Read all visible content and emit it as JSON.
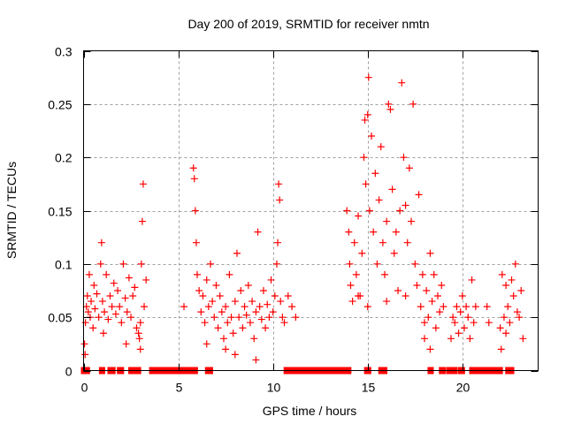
{
  "chart_data": {
    "type": "scatter",
    "title": "Day 200 of 2019, SRMTID for receiver nmtn",
    "xlabel": "GPS time / hours",
    "ylabel": "SRMTID / TECUs",
    "xlim": [
      0,
      24
    ],
    "ylim": [
      0,
      0.3
    ],
    "xticks": [
      0,
      5,
      10,
      15,
      20
    ],
    "xtick_labels": [
      "0",
      "5",
      "10",
      "15",
      "20"
    ],
    "yticks": [
      0,
      0.05,
      0.1,
      0.15,
      0.2,
      0.25,
      0.3
    ],
    "ytick_labels": [
      "0",
      "0.05",
      "0.1",
      "0.15",
      "0.2",
      "0.25",
      "0.3"
    ],
    "grid": true,
    "marker": "+",
    "color": "#ff0000",
    "legend": "none",
    "series": [
      {
        "name": "SRMTID",
        "points": [
          [
            0.05,
            0.025
          ],
          [
            0.1,
            0.045
          ],
          [
            0.15,
            0.06
          ],
          [
            0.2,
            0.07
          ],
          [
            0.25,
            0.055
          ],
          [
            0.3,
            0.09
          ],
          [
            0.35,
            0.05
          ],
          [
            0.4,
            0.065
          ],
          [
            0.5,
            0.04
          ],
          [
            0.55,
            0.08
          ],
          [
            0.6,
            0.058
          ],
          [
            0.7,
            0.072
          ],
          [
            0.8,
            0.05
          ],
          [
            0.9,
            0.1
          ],
          [
            0.95,
            0.12
          ],
          [
            1.0,
            0.065
          ],
          [
            1.1,
            0.055
          ],
          [
            1.2,
            0.09
          ],
          [
            1.3,
            0.048
          ],
          [
            1.4,
            0.07
          ],
          [
            1.5,
            0.06
          ],
          [
            1.6,
            0.082
          ],
          [
            1.7,
            0.053
          ],
          [
            1.8,
            0.075
          ],
          [
            1.9,
            0.06
          ],
          [
            2.0,
            0.045
          ],
          [
            2.1,
            0.1
          ],
          [
            2.2,
            0.068
          ],
          [
            2.3,
            0.055
          ],
          [
            2.4,
            0.087
          ],
          [
            2.5,
            0.05
          ],
          [
            2.6,
            0.07
          ],
          [
            2.7,
            0.078
          ],
          [
            2.8,
            0.04
          ],
          [
            2.9,
            0.035
          ],
          [
            3.0,
            0.045
          ],
          [
            3.05,
            0.1
          ],
          [
            3.1,
            0.14
          ],
          [
            3.15,
            0.175
          ],
          [
            3.2,
            0.06
          ],
          [
            3.3,
            0.085
          ],
          [
            3.0,
            0.02
          ],
          [
            2.95,
            0.03
          ],
          [
            0.08,
            0.015
          ],
          [
            1.05,
            0.035
          ],
          [
            2.25,
            0.025
          ],
          [
            5.3,
            0.06
          ],
          [
            5.8,
            0.19
          ],
          [
            5.85,
            0.18
          ],
          [
            5.9,
            0.15
          ],
          [
            5.95,
            0.12
          ],
          [
            6.0,
            0.09
          ],
          [
            6.1,
            0.075
          ],
          [
            6.2,
            0.055
          ],
          [
            6.3,
            0.07
          ],
          [
            6.4,
            0.045
          ],
          [
            6.5,
            0.085
          ],
          [
            6.6,
            0.06
          ],
          [
            6.7,
            0.1
          ],
          [
            6.8,
            0.065
          ],
          [
            6.9,
            0.05
          ],
          [
            7.0,
            0.08
          ],
          [
            7.1,
            0.04
          ],
          [
            7.2,
            0.07
          ],
          [
            7.3,
            0.055
          ],
          [
            7.4,
            0.03
          ],
          [
            7.5,
            0.06
          ],
          [
            7.6,
            0.045
          ],
          [
            7.7,
            0.09
          ],
          [
            7.8,
            0.05
          ],
          [
            7.9,
            0.035
          ],
          [
            8.0,
            0.065
          ],
          [
            8.1,
            0.11
          ],
          [
            8.2,
            0.05
          ],
          [
            8.3,
            0.075
          ],
          [
            8.4,
            0.04
          ],
          [
            8.5,
            0.06
          ],
          [
            8.6,
            0.052
          ],
          [
            8.7,
            0.08
          ],
          [
            8.8,
            0.045
          ],
          [
            8.9,
            0.065
          ],
          [
            9.0,
            0.03
          ],
          [
            9.1,
            0.055
          ],
          [
            9.2,
            0.13
          ],
          [
            9.3,
            0.06
          ],
          [
            9.4,
            0.048
          ],
          [
            9.5,
            0.075
          ],
          [
            9.6,
            0.04
          ],
          [
            9.7,
            0.062
          ],
          [
            9.8,
            0.05
          ],
          [
            9.9,
            0.085
          ],
          [
            10.0,
            0.055
          ],
          [
            10.1,
            0.07
          ],
          [
            10.2,
            0.1
          ],
          [
            10.25,
            0.12
          ],
          [
            10.3,
            0.175
          ],
          [
            10.35,
            0.16
          ],
          [
            10.4,
            0.065
          ],
          [
            10.5,
            0.05
          ],
          [
            10.6,
            0.045
          ],
          [
            10.8,
            0.07
          ],
          [
            11.0,
            0.06
          ],
          [
            11.2,
            0.05
          ],
          [
            9.1,
            0.01
          ],
          [
            8.0,
            0.015
          ],
          [
            7.5,
            0.02
          ],
          [
            6.5,
            0.025
          ],
          [
            13.9,
            0.15
          ],
          [
            14.0,
            0.13
          ],
          [
            14.05,
            0.1
          ],
          [
            14.1,
            0.08
          ],
          [
            14.2,
            0.065
          ],
          [
            14.3,
            0.12
          ],
          [
            14.4,
            0.09
          ],
          [
            14.5,
            0.145
          ],
          [
            14.6,
            0.07
          ],
          [
            14.7,
            0.11
          ],
          [
            14.8,
            0.2
          ],
          [
            14.85,
            0.235
          ],
          [
            14.9,
            0.175
          ],
          [
            15.0,
            0.24
          ],
          [
            15.05,
            0.275
          ],
          [
            15.1,
            0.15
          ],
          [
            15.2,
            0.22
          ],
          [
            15.3,
            0.13
          ],
          [
            15.4,
            0.185
          ],
          [
            15.5,
            0.1
          ],
          [
            15.6,
            0.16
          ],
          [
            15.7,
            0.21
          ],
          [
            15.8,
            0.12
          ],
          [
            15.9,
            0.09
          ],
          [
            16.0,
            0.14
          ],
          [
            16.1,
            0.25
          ],
          [
            16.2,
            0.245
          ],
          [
            16.3,
            0.17
          ],
          [
            16.4,
            0.11
          ],
          [
            16.5,
            0.13
          ],
          [
            16.6,
            0.075
          ],
          [
            16.7,
            0.15
          ],
          [
            16.8,
            0.27
          ],
          [
            16.9,
            0.2
          ],
          [
            17.0,
            0.155
          ],
          [
            17.1,
            0.12
          ],
          [
            17.2,
            0.19
          ],
          [
            17.3,
            0.14
          ],
          [
            17.4,
            0.25
          ],
          [
            17.5,
            0.1
          ],
          [
            17.6,
            0.08
          ],
          [
            17.7,
            0.165
          ],
          [
            17.8,
            0.06
          ],
          [
            17.9,
            0.09
          ],
          [
            18.0,
            0.045
          ],
          [
            18.1,
            0.075
          ],
          [
            18.2,
            0.05
          ],
          [
            18.3,
            0.11
          ],
          [
            18.4,
            0.065
          ],
          [
            18.5,
            0.09
          ],
          [
            18.6,
            0.04
          ],
          [
            18.7,
            0.07
          ],
          [
            18.8,
            0.055
          ],
          [
            18.9,
            0.08
          ],
          [
            19.0,
            0.06
          ],
          [
            15.0,
            0.06
          ],
          [
            16.0,
            0.065
          ],
          [
            17.0,
            0.07
          ],
          [
            18.0,
            0.03
          ],
          [
            18.3,
            0.02
          ],
          [
            14.5,
            0.07
          ],
          [
            19.4,
            0.03
          ],
          [
            19.5,
            0.05
          ],
          [
            19.6,
            0.045
          ],
          [
            19.7,
            0.06
          ],
          [
            19.8,
            0.035
          ],
          [
            19.9,
            0.055
          ],
          [
            20.0,
            0.07
          ],
          [
            20.1,
            0.04
          ],
          [
            20.2,
            0.06
          ],
          [
            20.3,
            0.05
          ],
          [
            20.4,
            0.03
          ],
          [
            20.5,
            0.085
          ],
          [
            20.6,
            0.045
          ],
          [
            20.7,
            0.06
          ],
          [
            21.3,
            0.06
          ],
          [
            21.4,
            0.045
          ],
          [
            22.0,
            0.04
          ],
          [
            22.05,
            0.02
          ],
          [
            22.1,
            0.09
          ],
          [
            22.2,
            0.05
          ],
          [
            22.3,
            0.08
          ],
          [
            22.4,
            0.06
          ],
          [
            22.5,
            0.045
          ],
          [
            22.6,
            0.085
          ],
          [
            22.7,
            0.07
          ],
          [
            22.8,
            0.1
          ],
          [
            22.9,
            0.055
          ],
          [
            23.0,
            0.05
          ],
          [
            23.1,
            0.075
          ],
          [
            23.2,
            0.03
          ],
          [
            22.3,
            0.035
          ]
        ],
        "zero_intervals": [
          [
            0.0,
            0.2
          ],
          [
            0.95,
            1.0
          ],
          [
            1.4,
            1.55
          ],
          [
            1.9,
            2.0
          ],
          [
            2.5,
            2.9
          ],
          [
            3.6,
            5.9
          ],
          [
            6.55,
            6.7
          ],
          [
            10.7,
            11.1
          ],
          [
            11.3,
            14.0
          ],
          [
            14.95,
            15.05
          ],
          [
            15.7,
            15.9
          ],
          [
            18.3,
            18.35
          ],
          [
            18.9,
            19.0
          ],
          [
            19.3,
            19.6
          ],
          [
            19.9,
            20.0
          ],
          [
            20.5,
            21.3
          ],
          [
            21.4,
            22.0
          ],
          [
            22.4,
            22.6
          ]
        ]
      }
    ]
  }
}
